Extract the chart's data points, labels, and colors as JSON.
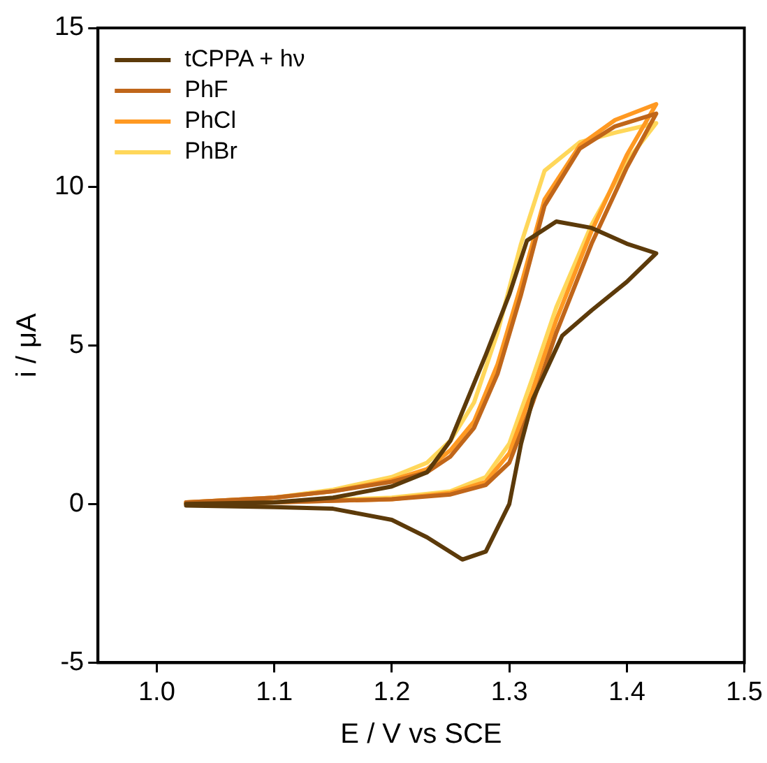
{
  "chart_data": {
    "type": "line",
    "xlabel": "E / V vs SCE",
    "ylabel": "i / μA",
    "xlim": [
      0.95,
      1.5
    ],
    "ylim": [
      -5,
      15
    ],
    "xticks": [
      {
        "value": 1.0,
        "label": "1.0"
      },
      {
        "value": 1.1,
        "label": "1.1"
      },
      {
        "value": 1.2,
        "label": "1.2"
      },
      {
        "value": 1.3,
        "label": "1.3"
      },
      {
        "value": 1.4,
        "label": "1.4"
      },
      {
        "value": 1.5,
        "label": "1.5"
      }
    ],
    "yticks": [
      -5,
      0,
      5,
      10,
      15
    ],
    "grid": false,
    "legend": "top left",
    "marker": "none",
    "line_style": "solid",
    "series": [
      {
        "name": "tCPPA + hν",
        "color": "#5c3a0a",
        "x": [
          1.025,
          1.1,
          1.15,
          1.2,
          1.23,
          1.25,
          1.28,
          1.3,
          1.315,
          1.34,
          1.37,
          1.4,
          1.425,
          1.4,
          1.37,
          1.345,
          1.32,
          1.31,
          1.3,
          1.28,
          1.26,
          1.23,
          1.2,
          1.15,
          1.1,
          1.025
        ],
        "values": [
          0,
          0.05,
          0.2,
          0.55,
          1.0,
          2.0,
          4.7,
          6.6,
          8.3,
          8.9,
          8.7,
          8.2,
          7.9,
          7.0,
          6.1,
          5.3,
          3.3,
          1.9,
          0.0,
          -1.5,
          -1.75,
          -1.05,
          -0.5,
          -0.15,
          -0.1,
          -0.05
        ]
      },
      {
        "name": "PhF",
        "color": "#c0661a",
        "x": [
          1.025,
          1.1,
          1.15,
          1.2,
          1.23,
          1.25,
          1.27,
          1.29,
          1.31,
          1.33,
          1.36,
          1.39,
          1.425,
          1.4,
          1.37,
          1.34,
          1.32,
          1.3,
          1.28,
          1.25,
          1.2,
          1.1,
          1.025
        ],
        "values": [
          0.05,
          0.2,
          0.4,
          0.7,
          1.0,
          1.5,
          2.4,
          4.1,
          6.6,
          9.4,
          11.2,
          11.9,
          12.3,
          10.6,
          8.2,
          5.4,
          3.2,
          1.3,
          0.6,
          0.3,
          0.15,
          0.05,
          0
        ]
      },
      {
        "name": "PhCl",
        "color": "#ff9922",
        "x": [
          1.025,
          1.1,
          1.15,
          1.2,
          1.23,
          1.25,
          1.27,
          1.29,
          1.31,
          1.33,
          1.36,
          1.39,
          1.425,
          1.4,
          1.37,
          1.34,
          1.32,
          1.3,
          1.28,
          1.25,
          1.2,
          1.1,
          1.025
        ],
        "values": [
          0.05,
          0.2,
          0.4,
          0.75,
          1.1,
          1.7,
          2.6,
          4.4,
          6.9,
          9.6,
          11.3,
          12.1,
          12.6,
          11.0,
          8.6,
          5.8,
          3.6,
          1.6,
          0.7,
          0.35,
          0.15,
          0.05,
          0
        ]
      },
      {
        "name": "PhBr",
        "color": "#ffd75a",
        "x": [
          1.025,
          1.1,
          1.15,
          1.2,
          1.23,
          1.25,
          1.27,
          1.29,
          1.31,
          1.33,
          1.36,
          1.39,
          1.425,
          1.4,
          1.37,
          1.34,
          1.32,
          1.3,
          1.28,
          1.25,
          1.2,
          1.1,
          1.025
        ],
        "values": [
          0.05,
          0.2,
          0.45,
          0.85,
          1.3,
          2.0,
          3.2,
          5.4,
          8.2,
          10.5,
          11.4,
          11.7,
          12.0,
          10.8,
          8.8,
          6.2,
          4.0,
          1.9,
          0.85,
          0.4,
          0.2,
          0.05,
          0
        ]
      }
    ]
  }
}
